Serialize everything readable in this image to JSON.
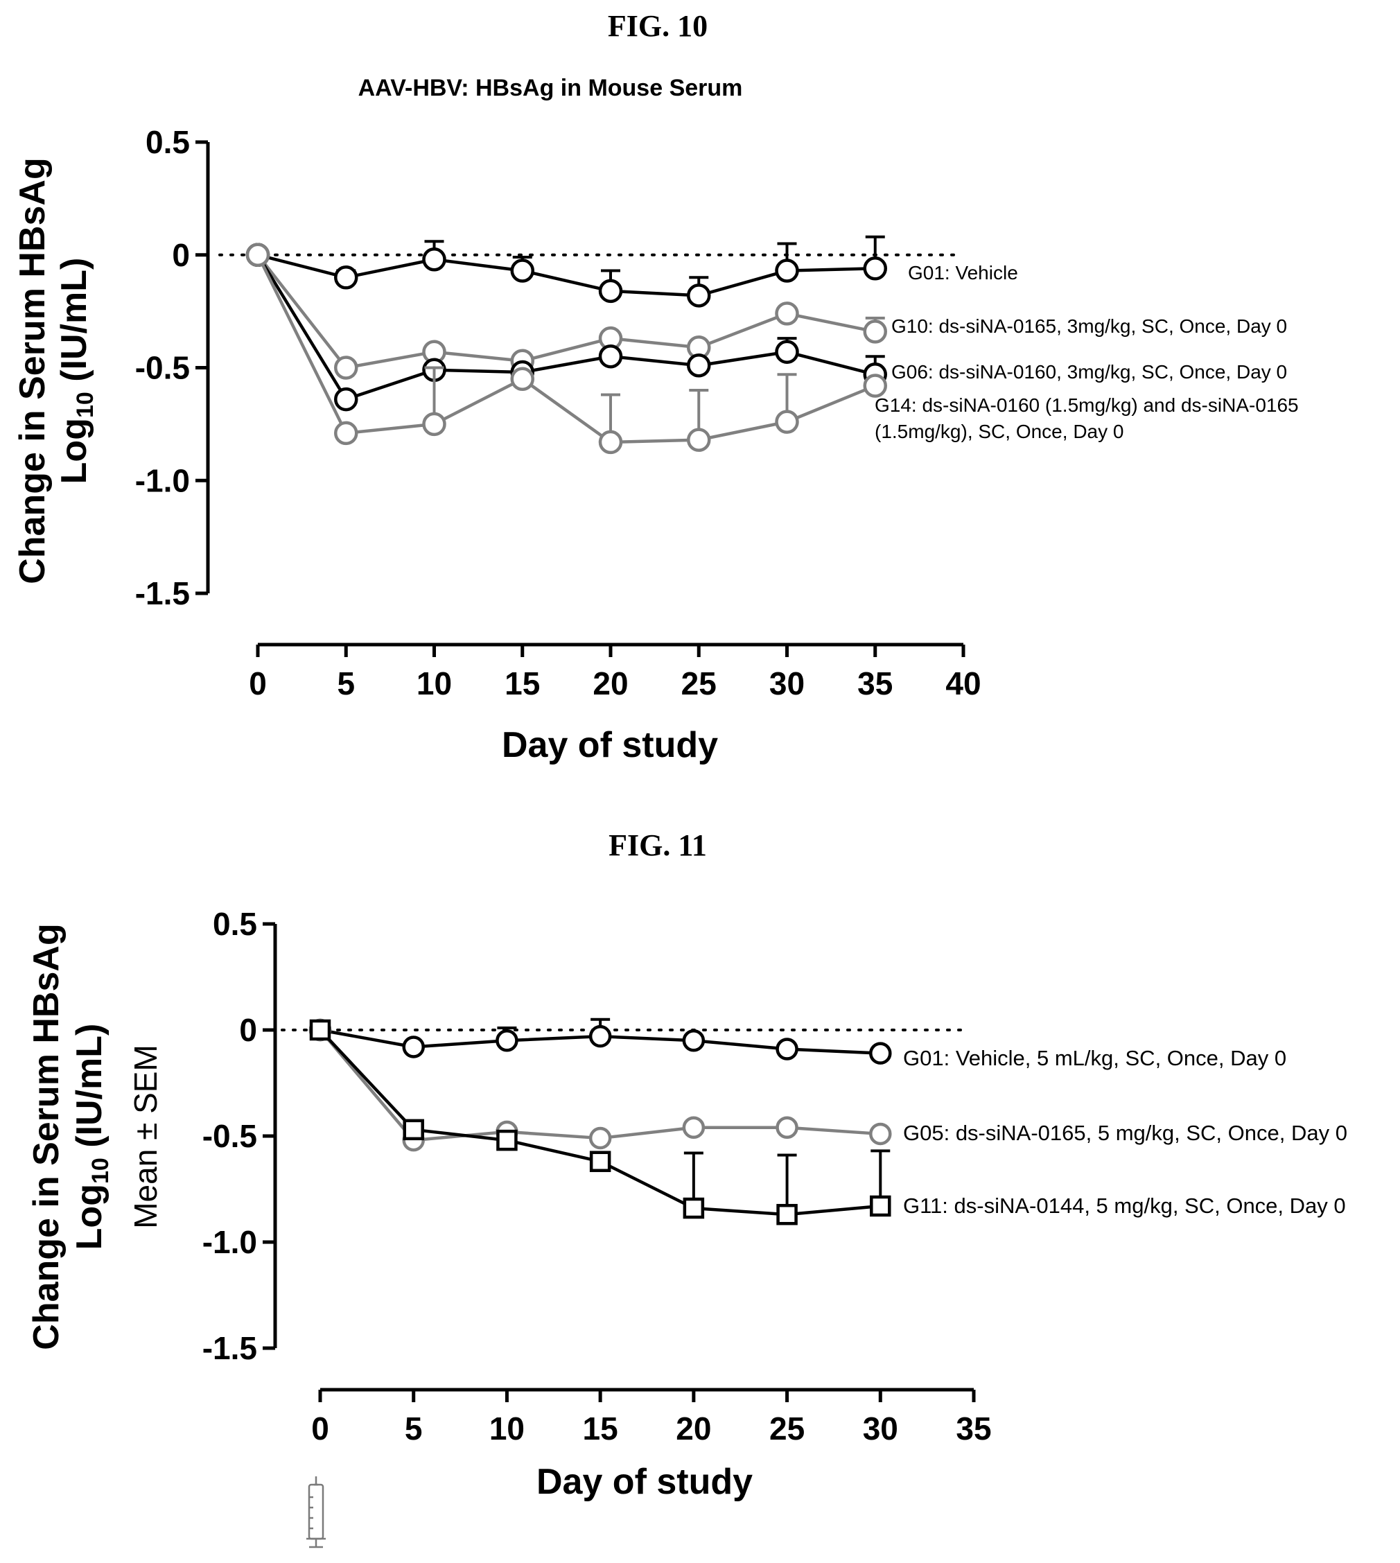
{
  "figures": [
    {
      "fig_label": "FIG. 10",
      "title": "AAV-HBV: HBsAg in Mouse Serum",
      "ylabel_line1": "Change in Serum HBsAg",
      "ylabel_line2": "Log10 (IU/mL)",
      "ylabel_line3": "",
      "xlabel": "Day of study"
    },
    {
      "fig_label": "FIG. 11",
      "title": "",
      "ylabel_line1": "Change in Serum HBsAg",
      "ylabel_line2": "Log10 (IU/mL)",
      "ylabel_line3": "Mean ± SEM",
      "xlabel": "Day of study"
    }
  ],
  "chart_data": [
    {
      "type": "line",
      "title": "AAV-HBV: HBsAg in Mouse Serum",
      "xlabel": "Day of study",
      "ylabel": "Change in Serum HBsAg Log10 (IU/mL)",
      "xlim": [
        0,
        40
      ],
      "ylim": [
        -1.5,
        0.5
      ],
      "xticks": [
        "0",
        "5",
        "10",
        "15",
        "20",
        "25",
        "30",
        "35",
        "40"
      ],
      "yticks": [
        "0.5",
        "0",
        "-0.5",
        "-1.0",
        "-1.5"
      ],
      "reference_line_y": 0,
      "series": [
        {
          "name": "G01: Vehicle",
          "color": "#000000",
          "marker": "circle",
          "x": [
            0,
            5,
            10,
            15,
            20,
            25,
            30,
            35
          ],
          "y": [
            0,
            -0.1,
            -0.02,
            -0.07,
            -0.16,
            -0.18,
            -0.07,
            -0.06
          ],
          "err": [
            0,
            0.03,
            0.08,
            0.06,
            0.09,
            0.08,
            0.12,
            0.14
          ],
          "err_dir": "up"
        },
        {
          "name": "G10: ds-siNA-0165, 3mg/kg, SC, Once, Day 0",
          "color": "#808080",
          "marker": "circle",
          "x": [
            0,
            5,
            10,
            15,
            20,
            25,
            30,
            35
          ],
          "y": [
            0,
            -0.5,
            -0.43,
            -0.47,
            -0.37,
            -0.41,
            -0.26,
            -0.34
          ],
          "err": [
            0,
            0.02,
            0.02,
            0.02,
            0.02,
            0.02,
            0.02,
            0.06
          ],
          "err_dir": "up"
        },
        {
          "name": "G06: ds-siNA-0160, 3mg/kg, SC, Once, Day 0",
          "color": "#000000",
          "marker": "circle",
          "x": [
            0,
            5,
            10,
            15,
            20,
            25,
            30,
            35
          ],
          "y": [
            0,
            -0.64,
            -0.51,
            -0.52,
            -0.45,
            -0.49,
            -0.43,
            -0.53
          ],
          "err": [
            0,
            0.02,
            0.02,
            0.02,
            0.02,
            0.02,
            0.06,
            0.08
          ],
          "err_dir": "up"
        },
        {
          "name_line1": "G14: ds-siNA-0160 (1.5mg/kg) and ds-siNA-0165",
          "name_line2": "(1.5mg/kg), SC, Once, Day 0",
          "color": "#808080",
          "marker": "circle",
          "x": [
            0,
            5,
            10,
            15,
            20,
            25,
            30,
            35
          ],
          "y": [
            0,
            -0.79,
            -0.75,
            -0.55,
            -0.83,
            -0.82,
            -0.74,
            -0.58
          ],
          "err": [
            0,
            0.02,
            0.25,
            0.02,
            0.21,
            0.22,
            0.21,
            0.02
          ],
          "err_dir": "up"
        }
      ]
    },
    {
      "type": "line",
      "title": "",
      "xlabel": "Day of study",
      "ylabel": "Change in Serum HBsAg Log10 (IU/mL) Mean ± SEM",
      "xlim": [
        0,
        35
      ],
      "ylim": [
        -1.5,
        0.5
      ],
      "xticks": [
        "0",
        "5",
        "10",
        "15",
        "20",
        "25",
        "30",
        "35"
      ],
      "yticks": [
        "0.5",
        "0",
        "-0.5",
        "-1.0",
        "-1.5"
      ],
      "reference_line_y": 0,
      "series": [
        {
          "name": "G01: Vehicle, 5 mL/kg, SC, Once, Day 0",
          "color": "#000000",
          "marker": "circle",
          "x": [
            0,
            5,
            10,
            15,
            20,
            25,
            30
          ],
          "y": [
            0,
            -0.08,
            -0.05,
            -0.03,
            -0.05,
            -0.09,
            -0.11
          ],
          "err": [
            0,
            0.02,
            0.06,
            0.08,
            0.02,
            0.02,
            0.02
          ],
          "err_dir": "up"
        },
        {
          "name": "G05: ds-siNA-0165, 5 mg/kg, SC, Once, Day 0",
          "color": "#808080",
          "marker": "circle",
          "x": [
            0,
            5,
            10,
            15,
            20,
            25,
            30
          ],
          "y": [
            0,
            -0.52,
            -0.48,
            -0.51,
            -0.46,
            -0.46,
            -0.49
          ],
          "err": [
            0,
            0.02,
            0.02,
            0.02,
            0.02,
            0.02,
            0.02
          ],
          "err_dir": "up"
        },
        {
          "name": "G11: ds-siNA-0144, 5 mg/kg, SC, Once, Day 0",
          "color": "#000000",
          "marker": "square",
          "x": [
            0,
            5,
            10,
            15,
            20,
            25,
            30
          ],
          "y": [
            0,
            -0.47,
            -0.52,
            -0.62,
            -0.84,
            -0.87,
            -0.83
          ],
          "err": [
            0,
            0.02,
            0.02,
            0.02,
            0.26,
            0.28,
            0.26
          ],
          "err_dir": "up"
        }
      ]
    }
  ]
}
